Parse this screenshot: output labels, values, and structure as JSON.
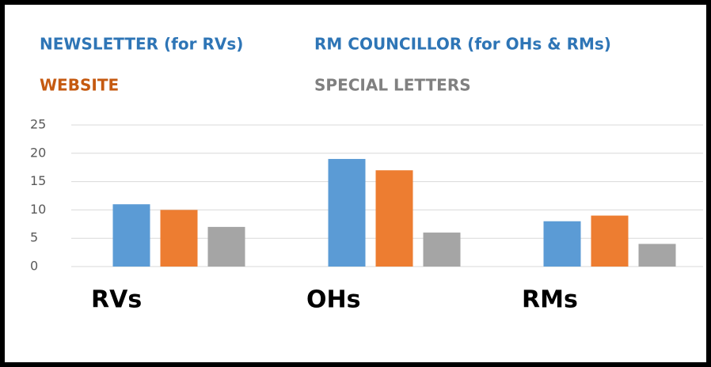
{
  "chart_data": {
    "type": "bar",
    "legend": [
      {
        "label": "NEWSLETTER (for RVs)",
        "color": "#2e75b6"
      },
      {
        "label": "RM COUNCILLOR (for OHs & RMs)",
        "color": "#2e75b6"
      },
      {
        "label": "WEBSITE",
        "color": "#c55a11"
      },
      {
        "label": "SPECIAL LETTERS",
        "color": "#808080"
      }
    ],
    "categories": [
      "RVs",
      "OHs",
      "RMs"
    ],
    "series": [
      {
        "color": "#5b9bd5",
        "values": [
          11,
          19,
          8
        ]
      },
      {
        "color": "#ed7d31",
        "values": [
          10,
          17,
          9
        ]
      },
      {
        "color": "#a5a5a5",
        "values": [
          7,
          6,
          4
        ]
      }
    ],
    "ylim": [
      0,
      25
    ],
    "yticks": [
      0,
      5,
      10,
      15,
      20,
      25
    ],
    "grid": true
  }
}
